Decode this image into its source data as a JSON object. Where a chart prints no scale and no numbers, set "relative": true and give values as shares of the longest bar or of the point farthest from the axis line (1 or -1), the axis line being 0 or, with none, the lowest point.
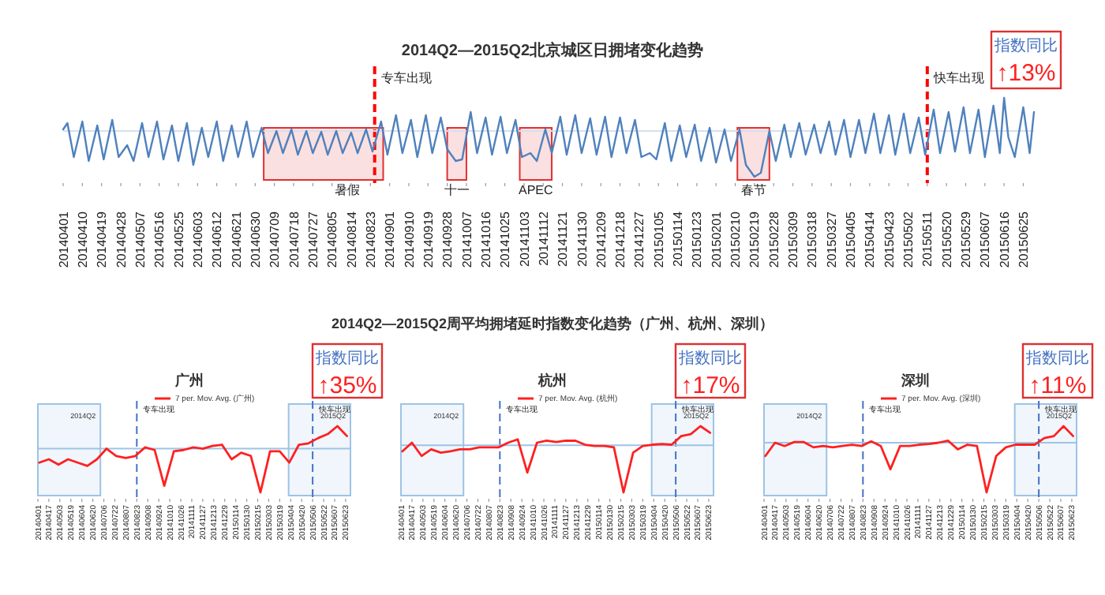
{
  "chart_data": [
    {
      "type": "line",
      "title": "2014Q2—2015Q2北京城区日拥堵变化趋势",
      "relative": true,
      "x": [
        "2014-04-01",
        "2014-04-03",
        "2014-04-06",
        "2014-04-10",
        "2014-04-13",
        "2014-04-17",
        "2014-04-20",
        "2014-04-24",
        "2014-04-27",
        "2014-05-01",
        "2014-05-04",
        "2014-05-08",
        "2014-05-11",
        "2014-05-15",
        "2014-05-18",
        "2014-05-22",
        "2014-05-25",
        "2014-05-29",
        "2014-06-01",
        "2014-06-05",
        "2014-06-08",
        "2014-06-12",
        "2014-06-15",
        "2014-06-19",
        "2014-06-22",
        "2014-06-26",
        "2014-06-29",
        "2014-07-03",
        "2014-07-06",
        "2014-07-10",
        "2014-07-13",
        "2014-07-17",
        "2014-07-20",
        "2014-07-24",
        "2014-07-27",
        "2014-07-31",
        "2014-08-03",
        "2014-08-07",
        "2014-08-10",
        "2014-08-14",
        "2014-08-17",
        "2014-08-21",
        "2014-08-24",
        "2014-08-28",
        "2014-08-31",
        "2014-09-04",
        "2014-09-07",
        "2014-09-11",
        "2014-09-14",
        "2014-09-18",
        "2014-09-21",
        "2014-09-25",
        "2014-09-28",
        "2014-10-02",
        "2014-10-05",
        "2014-10-09",
        "2014-10-12",
        "2014-10-16",
        "2014-10-19",
        "2014-10-23",
        "2014-10-26",
        "2014-10-30",
        "2014-11-02",
        "2014-11-06",
        "2014-11-09",
        "2014-11-13",
        "2014-11-16",
        "2014-11-20",
        "2014-11-23",
        "2014-11-27",
        "2014-11-30",
        "2014-12-04",
        "2014-12-07",
        "2014-12-11",
        "2014-12-14",
        "2014-12-18",
        "2014-12-21",
        "2014-12-25",
        "2014-12-28",
        "2015-01-01",
        "2015-01-04",
        "2015-01-08",
        "2015-01-11",
        "2015-01-15",
        "2015-01-18",
        "2015-01-22",
        "2015-01-25",
        "2015-01-29",
        "2015-02-01",
        "2015-02-05",
        "2015-02-08",
        "2015-02-12",
        "2015-02-15",
        "2015-02-19",
        "2015-02-22",
        "2015-02-26",
        "2015-03-01",
        "2015-03-05",
        "2015-03-08",
        "2015-03-12",
        "2015-03-15",
        "2015-03-19",
        "2015-03-22",
        "2015-03-26",
        "2015-03-29",
        "2015-04-02",
        "2015-04-05",
        "2015-04-09",
        "2015-04-12",
        "2015-04-16",
        "2015-04-19",
        "2015-04-23",
        "2015-04-26",
        "2015-04-30",
        "2015-05-03",
        "2015-05-07",
        "2015-05-10",
        "2015-05-14",
        "2015-05-17",
        "2015-05-21",
        "2015-05-24",
        "2015-05-28",
        "2015-05-31",
        "2015-06-04",
        "2015-06-07",
        "2015-06-11",
        "2015-06-14",
        "2015-06-16",
        "2015-06-18",
        "2015-06-21",
        "2015-06-25",
        "2015-06-28",
        "2015-06-30"
      ],
      "series": [
        {
          "color": "#4f81bd",
          "values": [
            0.6,
            0.68,
            0.25,
            0.7,
            0.2,
            0.65,
            0.22,
            0.72,
            0.25,
            0.4,
            0.2,
            0.68,
            0.25,
            0.7,
            0.22,
            0.65,
            0.2,
            0.68,
            0.15,
            0.62,
            0.25,
            0.7,
            0.2,
            0.65,
            0.25,
            0.7,
            0.25,
            0.62,
            0.3,
            0.58,
            0.3,
            0.6,
            0.28,
            0.58,
            0.3,
            0.57,
            0.28,
            0.58,
            0.3,
            0.56,
            0.3,
            0.6,
            0.32,
            0.7,
            0.28,
            0.78,
            0.3,
            0.72,
            0.25,
            0.78,
            0.3,
            0.75,
            0.35,
            0.2,
            0.22,
            0.82,
            0.3,
            0.75,
            0.28,
            0.76,
            0.3,
            0.72,
            0.25,
            0.3,
            0.2,
            0.6,
            0.3,
            0.76,
            0.28,
            0.78,
            0.3,
            0.74,
            0.28,
            0.76,
            0.25,
            0.75,
            0.3,
            0.72,
            0.25,
            0.3,
            0.22,
            0.68,
            0.2,
            0.65,
            0.25,
            0.66,
            0.2,
            0.62,
            0.18,
            0.6,
            0.2,
            0.6,
            0.15,
            0,
            0.05,
            0.58,
            0.2,
            0.66,
            0.25,
            0.68,
            0.28,
            0.66,
            0.3,
            0.7,
            0.28,
            0.72,
            0.25,
            0.72,
            0.3,
            0.8,
            0.3,
            0.78,
            0.28,
            0.8,
            0.3,
            0.75,
            0.28,
            0.85,
            0.3,
            0.82,
            0.32,
            0.88,
            0.3,
            0.85,
            0.25,
            0.9,
            0.3,
            1,
            0.5,
            0.25,
            0.88,
            0.3,
            0.82
          ]
        }
      ],
      "xlim": [
        "2014-04-01",
        "2015-06-30"
      ],
      "xticks": [
        {
          "value": "2014-04-01",
          "label": "20140401"
        },
        {
          "value": "2014-04-10",
          "label": "20140410"
        },
        {
          "value": "2014-04-19",
          "label": "20140419"
        },
        {
          "value": "2014-04-28",
          "label": "20140428"
        },
        {
          "value": "2014-05-07",
          "label": "20140507"
        },
        {
          "value": "2014-05-16",
          "label": "20140516"
        },
        {
          "value": "2014-05-25",
          "label": "20140525"
        },
        {
          "value": "2014-06-03",
          "label": "20140603"
        },
        {
          "value": "2014-06-12",
          "label": "20140612"
        },
        {
          "value": "2014-06-21",
          "label": "20140621"
        },
        {
          "value": "2014-06-30",
          "label": "20140630"
        },
        {
          "value": "2014-07-09",
          "label": "20140709"
        },
        {
          "value": "2014-07-18",
          "label": "20140718"
        },
        {
          "value": "2014-07-27",
          "label": "20140727"
        },
        {
          "value": "2014-08-05",
          "label": "20140805"
        },
        {
          "value": "2014-08-14",
          "label": "20140814"
        },
        {
          "value": "2014-08-23",
          "label": "20140823"
        },
        {
          "value": "2014-09-01",
          "label": "20140901"
        },
        {
          "value": "2014-09-10",
          "label": "20140910"
        },
        {
          "value": "2014-09-19",
          "label": "20140919"
        },
        {
          "value": "2014-09-28",
          "label": "20140928"
        },
        {
          "value": "2014-10-07",
          "label": "20141007"
        },
        {
          "value": "2014-10-16",
          "label": "20141016"
        },
        {
          "value": "2014-10-25",
          "label": "20141025"
        },
        {
          "value": "2014-11-03",
          "label": "20141103"
        },
        {
          "value": "2014-11-12",
          "label": "20141112"
        },
        {
          "value": "2014-11-21",
          "label": "20141121"
        },
        {
          "value": "2014-11-30",
          "label": "20141130"
        },
        {
          "value": "2014-12-09",
          "label": "20141209"
        },
        {
          "value": "2014-12-18",
          "label": "20141218"
        },
        {
          "value": "2014-12-27",
          "label": "20141227"
        },
        {
          "value": "2015-01-05",
          "label": "20150105"
        },
        {
          "value": "2015-01-14",
          "label": "20150114"
        },
        {
          "value": "2015-01-23",
          "label": "20150123"
        },
        {
          "value": "2015-02-01",
          "label": "20150201"
        },
        {
          "value": "2015-02-10",
          "label": "20150210"
        },
        {
          "value": "2015-02-19",
          "label": "20150219"
        },
        {
          "value": "2015-02-28",
          "label": "20150228"
        },
        {
          "value": "2015-03-09",
          "label": "20150309"
        },
        {
          "value": "2015-03-18",
          "label": "20150318"
        },
        {
          "value": "2015-03-27",
          "label": "20150327"
        },
        {
          "value": "2015-04-05",
          "label": "20150405"
        },
        {
          "value": "2015-04-14",
          "label": "20150414"
        },
        {
          "value": "2015-04-23",
          "label": "20150423"
        },
        {
          "value": "2015-05-02",
          "label": "20150502"
        },
        {
          "value": "2015-05-11",
          "label": "20150511"
        },
        {
          "value": "2015-05-20",
          "label": "20150520"
        },
        {
          "value": "2015-05-29",
          "label": "20150529"
        },
        {
          "value": "2015-06-07",
          "label": "20150607"
        },
        {
          "value": "2015-06-16",
          "label": "20150616"
        },
        {
          "value": "2015-06-25",
          "label": "20150625"
        }
      ],
      "ref_lines": [
        {
          "axis": "x",
          "value": "2014-08-25",
          "label": "专车出现",
          "color": "#ff0000",
          "line_style": "dashed"
        },
        {
          "axis": "x",
          "value": "2015-05-11",
          "label": "快车出现",
          "color": "#ff0000",
          "line_style": "dashed"
        },
        {
          "axis": "y",
          "value": 0.58,
          "color": "#d6e0ee"
        }
      ],
      "bands": [
        {
          "axis": "x",
          "from": "2014-07-04",
          "to": "2014-08-29",
          "label": "暑假",
          "color": "#e03030"
        },
        {
          "axis": "x",
          "from": "2014-09-28",
          "to": "2014-10-07",
          "label": "十一",
          "color": "#e03030"
        },
        {
          "axis": "x",
          "from": "2014-11-01",
          "to": "2014-11-16",
          "label": "APEC",
          "color": "#e03030"
        },
        {
          "axis": "x",
          "from": "2015-02-11",
          "to": "2015-02-26",
          "label": "春节",
          "color": "#e03030"
        }
      ],
      "annotations": [
        "指数同比",
        "↑13%"
      ]
    },
    {
      "type": "other",
      "title": "2014Q2—2015Q2周平均拥堵延时指数变化趋势（广州、杭州、深圳）"
    },
    {
      "type": "line",
      "title": "广州",
      "relative": true,
      "legend": "top",
      "x": [
        "2014-04-03",
        "2014-04-17",
        "2014-05-01",
        "2014-05-15",
        "2014-05-29",
        "2014-06-12",
        "2014-06-26",
        "2014-07-10",
        "2014-07-24",
        "2014-08-07",
        "2014-08-21",
        "2014-09-04",
        "2014-09-18",
        "2014-10-02",
        "2014-10-16",
        "2014-10-30",
        "2014-11-13",
        "2014-11-27",
        "2014-12-11",
        "2014-12-25",
        "2015-01-08",
        "2015-01-22",
        "2015-02-05",
        "2015-02-19",
        "2015-03-05",
        "2015-03-19",
        "2015-04-02",
        "2015-04-16",
        "2015-04-30",
        "2015-05-14",
        "2015-05-28",
        "2015-06-11",
        "2015-06-25"
      ],
      "series": [
        {
          "name": "7 per. Mov. Avg. (广州)",
          "color": "#ff2020",
          "values": [
            0.45,
            0.5,
            0.42,
            0.5,
            0.45,
            0.4,
            0.5,
            0.66,
            0.55,
            0.52,
            0.55,
            0.68,
            0.64,
            0.1,
            0.62,
            0.64,
            0.68,
            0.66,
            0.7,
            0.72,
            0.5,
            0.6,
            0.55,
            0,
            0.62,
            0.62,
            0.45,
            0.72,
            0.74,
            0.82,
            0.88,
            1,
            0.85
          ]
        }
      ],
      "xlim": [
        "2014-04-01",
        "2015-06-30"
      ],
      "xticks": [
        {
          "value": "2014-04-01",
          "label": "20140401"
        },
        {
          "value": "2014-04-17",
          "label": "20140417"
        },
        {
          "value": "2014-05-03",
          "label": "20140503"
        },
        {
          "value": "2014-05-19",
          "label": "20140519"
        },
        {
          "value": "2014-06-04",
          "label": "20140604"
        },
        {
          "value": "2014-06-20",
          "label": "20140620"
        },
        {
          "value": "2014-07-06",
          "label": "20140706"
        },
        {
          "value": "2014-07-22",
          "label": "20140722"
        },
        {
          "value": "2014-08-07",
          "label": "20140807"
        },
        {
          "value": "2014-08-23",
          "label": "20140823"
        },
        {
          "value": "2014-09-08",
          "label": "20140908"
        },
        {
          "value": "2014-09-24",
          "label": "20140924"
        },
        {
          "value": "2014-10-10",
          "label": "20141010"
        },
        {
          "value": "2014-10-26",
          "label": "20141026"
        },
        {
          "value": "2014-11-11",
          "label": "20141111"
        },
        {
          "value": "2014-11-27",
          "label": "20141127"
        },
        {
          "value": "2014-12-13",
          "label": "20141213"
        },
        {
          "value": "2014-12-29",
          "label": "20141229"
        },
        {
          "value": "2015-01-14",
          "label": "20150114"
        },
        {
          "value": "2015-01-30",
          "label": "20150130"
        },
        {
          "value": "2015-02-15",
          "label": "20150215"
        },
        {
          "value": "2015-03-03",
          "label": "20150303"
        },
        {
          "value": "2015-03-19",
          "label": "20150319"
        },
        {
          "value": "2015-04-04",
          "label": "20150404"
        },
        {
          "value": "2015-04-20",
          "label": "20150420"
        },
        {
          "value": "2015-05-06",
          "label": "20150506"
        },
        {
          "value": "2015-05-22",
          "label": "20150522"
        },
        {
          "value": "2015-06-07",
          "label": "20150607"
        },
        {
          "value": "2015-06-23",
          "label": "20150623"
        }
      ],
      "ref_lines": [
        {
          "axis": "x",
          "value": "2014-08-23",
          "label": "专车出现",
          "color": "#4472c4",
          "line_style": "dashed"
        },
        {
          "axis": "x",
          "value": "2015-05-06",
          "label": "快车出现",
          "color": "#4472c4",
          "line_style": "dashed"
        },
        {
          "axis": "y",
          "value": 0.66,
          "color": "#9dc3e6"
        }
      ],
      "bands": [
        {
          "axis": "x",
          "from": "2014-04-01",
          "to": "2014-07-01",
          "label": "2014Q2",
          "color": "#9dc3e6"
        },
        {
          "axis": "x",
          "from": "2015-04-01",
          "to": "2015-06-30",
          "label": "2015Q2",
          "color": "#9dc3e6"
        }
      ],
      "annotations": [
        "指数同比",
        "↑35%"
      ]
    },
    {
      "type": "line",
      "title": "杭州",
      "relative": true,
      "legend": "top",
      "x": [
        "2014-04-03",
        "2014-04-17",
        "2014-05-01",
        "2014-05-15",
        "2014-05-29",
        "2014-06-12",
        "2014-06-26",
        "2014-07-10",
        "2014-07-24",
        "2014-08-07",
        "2014-08-21",
        "2014-09-04",
        "2014-09-18",
        "2014-10-02",
        "2014-10-16",
        "2014-10-30",
        "2014-11-13",
        "2014-11-27",
        "2014-12-11",
        "2014-12-25",
        "2015-01-08",
        "2015-01-22",
        "2015-02-05",
        "2015-02-19",
        "2015-03-05",
        "2015-03-19",
        "2015-04-02",
        "2015-04-16",
        "2015-04-30",
        "2015-05-14",
        "2015-05-28",
        "2015-06-11",
        "2015-06-25"
      ],
      "series": [
        {
          "name": "7 per. Mov. Avg. (杭州)",
          "color": "#ff2020",
          "values": [
            0.62,
            0.75,
            0.55,
            0.65,
            0.6,
            0.62,
            0.65,
            0.65,
            0.68,
            0.68,
            0.68,
            0.75,
            0.8,
            0.3,
            0.75,
            0.78,
            0.76,
            0.78,
            0.78,
            0.72,
            0.7,
            0.7,
            0.68,
            0,
            0.6,
            0.7,
            0.72,
            0.73,
            0.72,
            0.85,
            0.88,
            1,
            0.9
          ]
        }
      ],
      "xlim": [
        "2014-04-01",
        "2015-06-30"
      ],
      "xticks": [
        {
          "value": "2014-04-01",
          "label": "20140401"
        },
        {
          "value": "2014-04-17",
          "label": "20140417"
        },
        {
          "value": "2014-05-03",
          "label": "20140503"
        },
        {
          "value": "2014-05-19",
          "label": "20140519"
        },
        {
          "value": "2014-06-04",
          "label": "20140604"
        },
        {
          "value": "2014-06-20",
          "label": "20140620"
        },
        {
          "value": "2014-07-06",
          "label": "20140706"
        },
        {
          "value": "2014-07-22",
          "label": "20140722"
        },
        {
          "value": "2014-08-07",
          "label": "20140807"
        },
        {
          "value": "2014-08-23",
          "label": "20140823"
        },
        {
          "value": "2014-09-08",
          "label": "20140908"
        },
        {
          "value": "2014-09-24",
          "label": "20140924"
        },
        {
          "value": "2014-10-10",
          "label": "20141010"
        },
        {
          "value": "2014-10-26",
          "label": "20141026"
        },
        {
          "value": "2014-11-11",
          "label": "20141111"
        },
        {
          "value": "2014-11-27",
          "label": "20141127"
        },
        {
          "value": "2014-12-13",
          "label": "20141213"
        },
        {
          "value": "2014-12-29",
          "label": "20141229"
        },
        {
          "value": "2015-01-14",
          "label": "20150114"
        },
        {
          "value": "2015-01-30",
          "label": "20150130"
        },
        {
          "value": "2015-02-15",
          "label": "20150215"
        },
        {
          "value": "2015-03-03",
          "label": "20150303"
        },
        {
          "value": "2015-03-19",
          "label": "20150319"
        },
        {
          "value": "2015-04-04",
          "label": "20150404"
        },
        {
          "value": "2015-04-20",
          "label": "20150420"
        },
        {
          "value": "2015-05-06",
          "label": "20150506"
        },
        {
          "value": "2015-05-22",
          "label": "20150522"
        },
        {
          "value": "2015-06-07",
          "label": "20150607"
        },
        {
          "value": "2015-06-23",
          "label": "20150623"
        }
      ],
      "ref_lines": [
        {
          "axis": "x",
          "value": "2014-08-23",
          "label": "专车出现",
          "color": "#4472c4",
          "line_style": "dashed"
        },
        {
          "axis": "x",
          "value": "2015-05-06",
          "label": "快车出现",
          "color": "#4472c4",
          "line_style": "dashed"
        },
        {
          "axis": "y",
          "value": 0.71,
          "color": "#9dc3e6"
        }
      ],
      "bands": [
        {
          "axis": "x",
          "from": "2014-04-01",
          "to": "2014-07-01",
          "label": "2014Q2",
          "color": "#9dc3e6"
        },
        {
          "axis": "x",
          "from": "2015-04-01",
          "to": "2015-06-30",
          "label": "2015Q2",
          "color": "#9dc3e6"
        }
      ],
      "annotations": [
        "指数同比",
        "↑17%"
      ]
    },
    {
      "type": "line",
      "title": "深圳",
      "relative": true,
      "legend": "top",
      "x": [
        "2014-04-03",
        "2014-04-17",
        "2014-05-01",
        "2014-05-15",
        "2014-05-29",
        "2014-06-12",
        "2014-06-26",
        "2014-07-10",
        "2014-07-24",
        "2014-08-07",
        "2014-08-21",
        "2014-09-04",
        "2014-09-18",
        "2014-10-02",
        "2014-10-16",
        "2014-10-30",
        "2014-11-13",
        "2014-11-27",
        "2014-12-11",
        "2014-12-25",
        "2015-01-08",
        "2015-01-22",
        "2015-02-05",
        "2015-02-19",
        "2015-03-05",
        "2015-03-19",
        "2015-04-02",
        "2015-04-16",
        "2015-04-30",
        "2015-05-14",
        "2015-05-28",
        "2015-06-11",
        "2015-06-25"
      ],
      "series": [
        {
          "name": "7 per. Mov. Avg. (深圳)",
          "color": "#ff2020",
          "values": [
            0.55,
            0.75,
            0.7,
            0.76,
            0.76,
            0.68,
            0.7,
            0.68,
            0.7,
            0.72,
            0.7,
            0.77,
            0.7,
            0.35,
            0.7,
            0.7,
            0.72,
            0.73,
            0.75,
            0.78,
            0.65,
            0.72,
            0.7,
            0,
            0.55,
            0.68,
            0.72,
            0.72,
            0.72,
            0.82,
            0.85,
            1,
            0.85
          ]
        }
      ],
      "xlim": [
        "2014-04-01",
        "2015-06-30"
      ],
      "xticks": [
        {
          "value": "2014-04-01",
          "label": "20140401"
        },
        {
          "value": "2014-04-17",
          "label": "20140417"
        },
        {
          "value": "2014-05-03",
          "label": "20140503"
        },
        {
          "value": "2014-05-19",
          "label": "20140519"
        },
        {
          "value": "2014-06-04",
          "label": "20140604"
        },
        {
          "value": "2014-06-20",
          "label": "20140620"
        },
        {
          "value": "2014-07-06",
          "label": "20140706"
        },
        {
          "value": "2014-07-22",
          "label": "20140722"
        },
        {
          "value": "2014-08-07",
          "label": "20140807"
        },
        {
          "value": "2014-08-23",
          "label": "20140823"
        },
        {
          "value": "2014-09-08",
          "label": "20140908"
        },
        {
          "value": "2014-09-24",
          "label": "20140924"
        },
        {
          "value": "2014-10-10",
          "label": "20141010"
        },
        {
          "value": "2014-10-26",
          "label": "20141026"
        },
        {
          "value": "2014-11-11",
          "label": "20141111"
        },
        {
          "value": "2014-11-27",
          "label": "20141127"
        },
        {
          "value": "2014-12-13",
          "label": "20141213"
        },
        {
          "value": "2014-12-29",
          "label": "20141229"
        },
        {
          "value": "2015-01-14",
          "label": "20150114"
        },
        {
          "value": "2015-01-30",
          "label": "20150130"
        },
        {
          "value": "2015-02-15",
          "label": "20150215"
        },
        {
          "value": "2015-03-03",
          "label": "20150303"
        },
        {
          "value": "2015-03-19",
          "label": "20150319"
        },
        {
          "value": "2015-04-04",
          "label": "20150404"
        },
        {
          "value": "2015-04-20",
          "label": "20150420"
        },
        {
          "value": "2015-05-06",
          "label": "20150506"
        },
        {
          "value": "2015-05-22",
          "label": "20150522"
        },
        {
          "value": "2015-06-07",
          "label": "20150607"
        },
        {
          "value": "2015-06-23",
          "label": "20150623"
        }
      ],
      "ref_lines": [
        {
          "axis": "x",
          "value": "2014-08-23",
          "label": "专车出现",
          "color": "#4472c4",
          "line_style": "dashed"
        },
        {
          "axis": "x",
          "value": "2015-05-06",
          "label": "快车出现",
          "color": "#4472c4",
          "line_style": "dashed"
        },
        {
          "axis": "y",
          "value": 0.75,
          "color": "#9dc3e6"
        }
      ],
      "bands": [
        {
          "axis": "x",
          "from": "2014-04-01",
          "to": "2014-07-01",
          "label": "2014Q2",
          "color": "#9dc3e6"
        },
        {
          "axis": "x",
          "from": "2015-04-01",
          "to": "2015-06-30",
          "label": "2015Q2",
          "color": "#9dc3e6"
        }
      ],
      "annotations": [
        "指数同比",
        "↑11%"
      ]
    }
  ]
}
